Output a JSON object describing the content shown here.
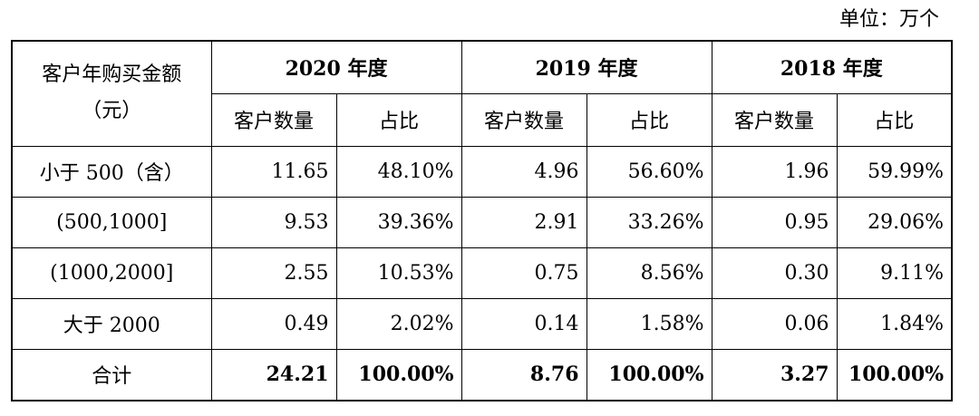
{
  "unit_label": "单位：万个",
  "header": {
    "first_col": [
      "客户年购买金额",
      "（元）"
    ],
    "years": [
      "2020 年度",
      "2019 年度",
      "2018 年度"
    ],
    "sub": {
      "count": "客户数量",
      "ratio": "占比"
    }
  },
  "rows": [
    {
      "label": "小于 500（含）",
      "cells": [
        "11.65",
        "48.10%",
        "4.96",
        "56.60%",
        "1.96",
        "59.99%"
      ]
    },
    {
      "label": "(500,1000]",
      "cells": [
        "9.53",
        "39.36%",
        "2.91",
        "33.26%",
        "0.95",
        "29.06%"
      ]
    },
    {
      "label": "(1000,2000]",
      "cells": [
        "2.55",
        "10.53%",
        "0.75",
        "8.56%",
        "0.30",
        "9.11%"
      ]
    },
    {
      "label": "大于 2000",
      "cells": [
        "0.49",
        "2.02%",
        "0.14",
        "1.58%",
        "0.06",
        "1.84%"
      ]
    }
  ],
  "total": {
    "label": "合计",
    "cells": [
      "24.21",
      "100.00%",
      "8.76",
      "100.00%",
      "3.27",
      "100.00%"
    ]
  }
}
